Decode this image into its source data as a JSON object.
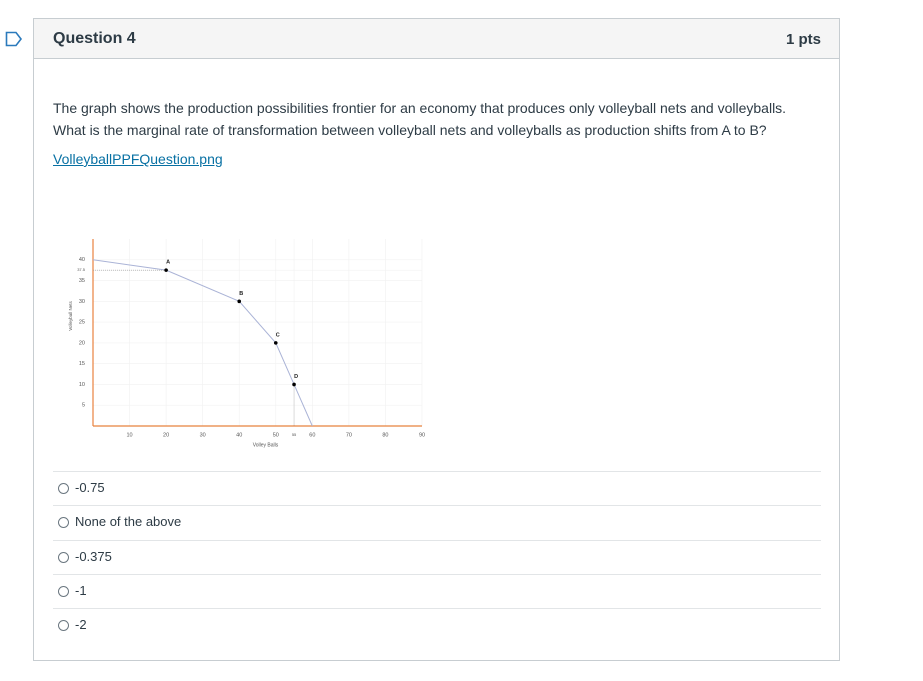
{
  "header": {
    "title": "Question 4",
    "points": "1 pts"
  },
  "question": {
    "text": "The graph shows the production possibilities frontier for an economy that produces only volleyball nets and volleyballs. What is the marginal rate of transformation between volleyball nets and volleyballs as production shifts from A to B?",
    "link": "VolleyballPPFQuestion.png"
  },
  "chart_data": {
    "type": "line",
    "x_label": "Volley Balls",
    "y_label": "Volleyball Nets",
    "x": [
      0,
      20,
      40,
      50,
      55,
      60
    ],
    "values": [
      40,
      37.5,
      30,
      20,
      10,
      0
    ],
    "color": "#aab3d6",
    "points": {
      "labels": [
        "A",
        "B",
        "C",
        "D"
      ],
      "x": [
        20,
        40,
        50,
        55
      ],
      "y": [
        37.5,
        30,
        20,
        10
      ],
      "color": "#000000"
    },
    "xlim": [
      0,
      90
    ],
    "ylim": [
      0,
      45
    ],
    "xticks": [
      10,
      20,
      30,
      40,
      50,
      55,
      60,
      70,
      80,
      90
    ],
    "yticks": [
      5,
      10,
      15,
      20,
      25,
      30,
      35,
      37.5,
      40
    ],
    "grid": true,
    "axis_color": "#e8823f"
  },
  "options": [
    "-0.75",
    "None of the above",
    "-0.375",
    "-1",
    "-2"
  ]
}
